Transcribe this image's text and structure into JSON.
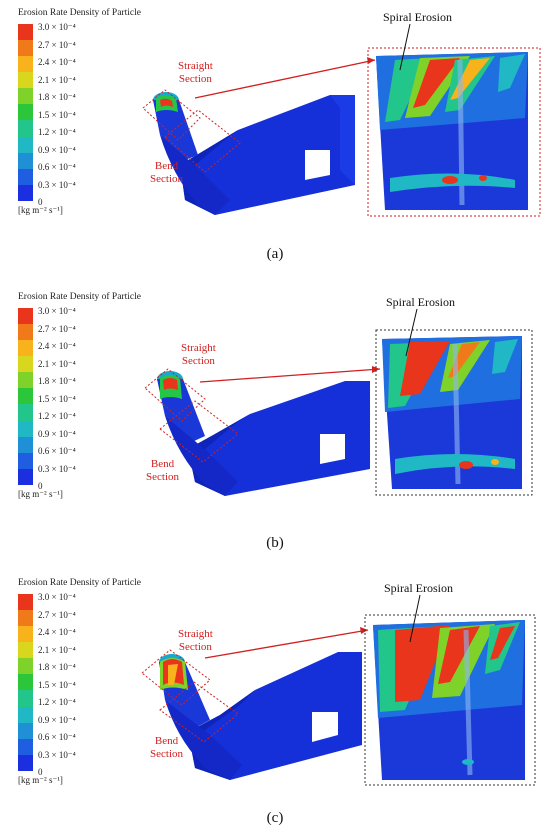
{
  "legend": {
    "title": "Erosion Rate Density of Particle",
    "ticks": [
      "3.0 × 10⁻⁴",
      "2.7 × 10⁻⁴",
      "2.4 × 10⁻⁴",
      "2.1 × 10⁻⁴",
      "1.8 × 10⁻⁴",
      "1.5 × 10⁻⁴",
      "1.2 × 10⁻⁴",
      "0.9 × 10⁻⁴",
      "0.6 × 10⁻⁴",
      "0.3 × 10⁻⁴",
      "0"
    ],
    "unit": "[kg m⁻² s⁻¹]",
    "colors": [
      "#e8351c",
      "#f07a1a",
      "#f7b21c",
      "#d9d61e",
      "#7fd22a",
      "#2cc63a",
      "#22c58a",
      "#1fb8c4",
      "#1f8fd6",
      "#1f5ee0",
      "#1c2fe0"
    ]
  },
  "labels": {
    "straight": "Straight\nSection",
    "bend": "Bend\nSection",
    "spiral": "Spiral Erosion"
  },
  "panels": [
    {
      "caption": "(a)"
    },
    {
      "caption": "(b)"
    },
    {
      "caption": "(c)"
    }
  ]
}
